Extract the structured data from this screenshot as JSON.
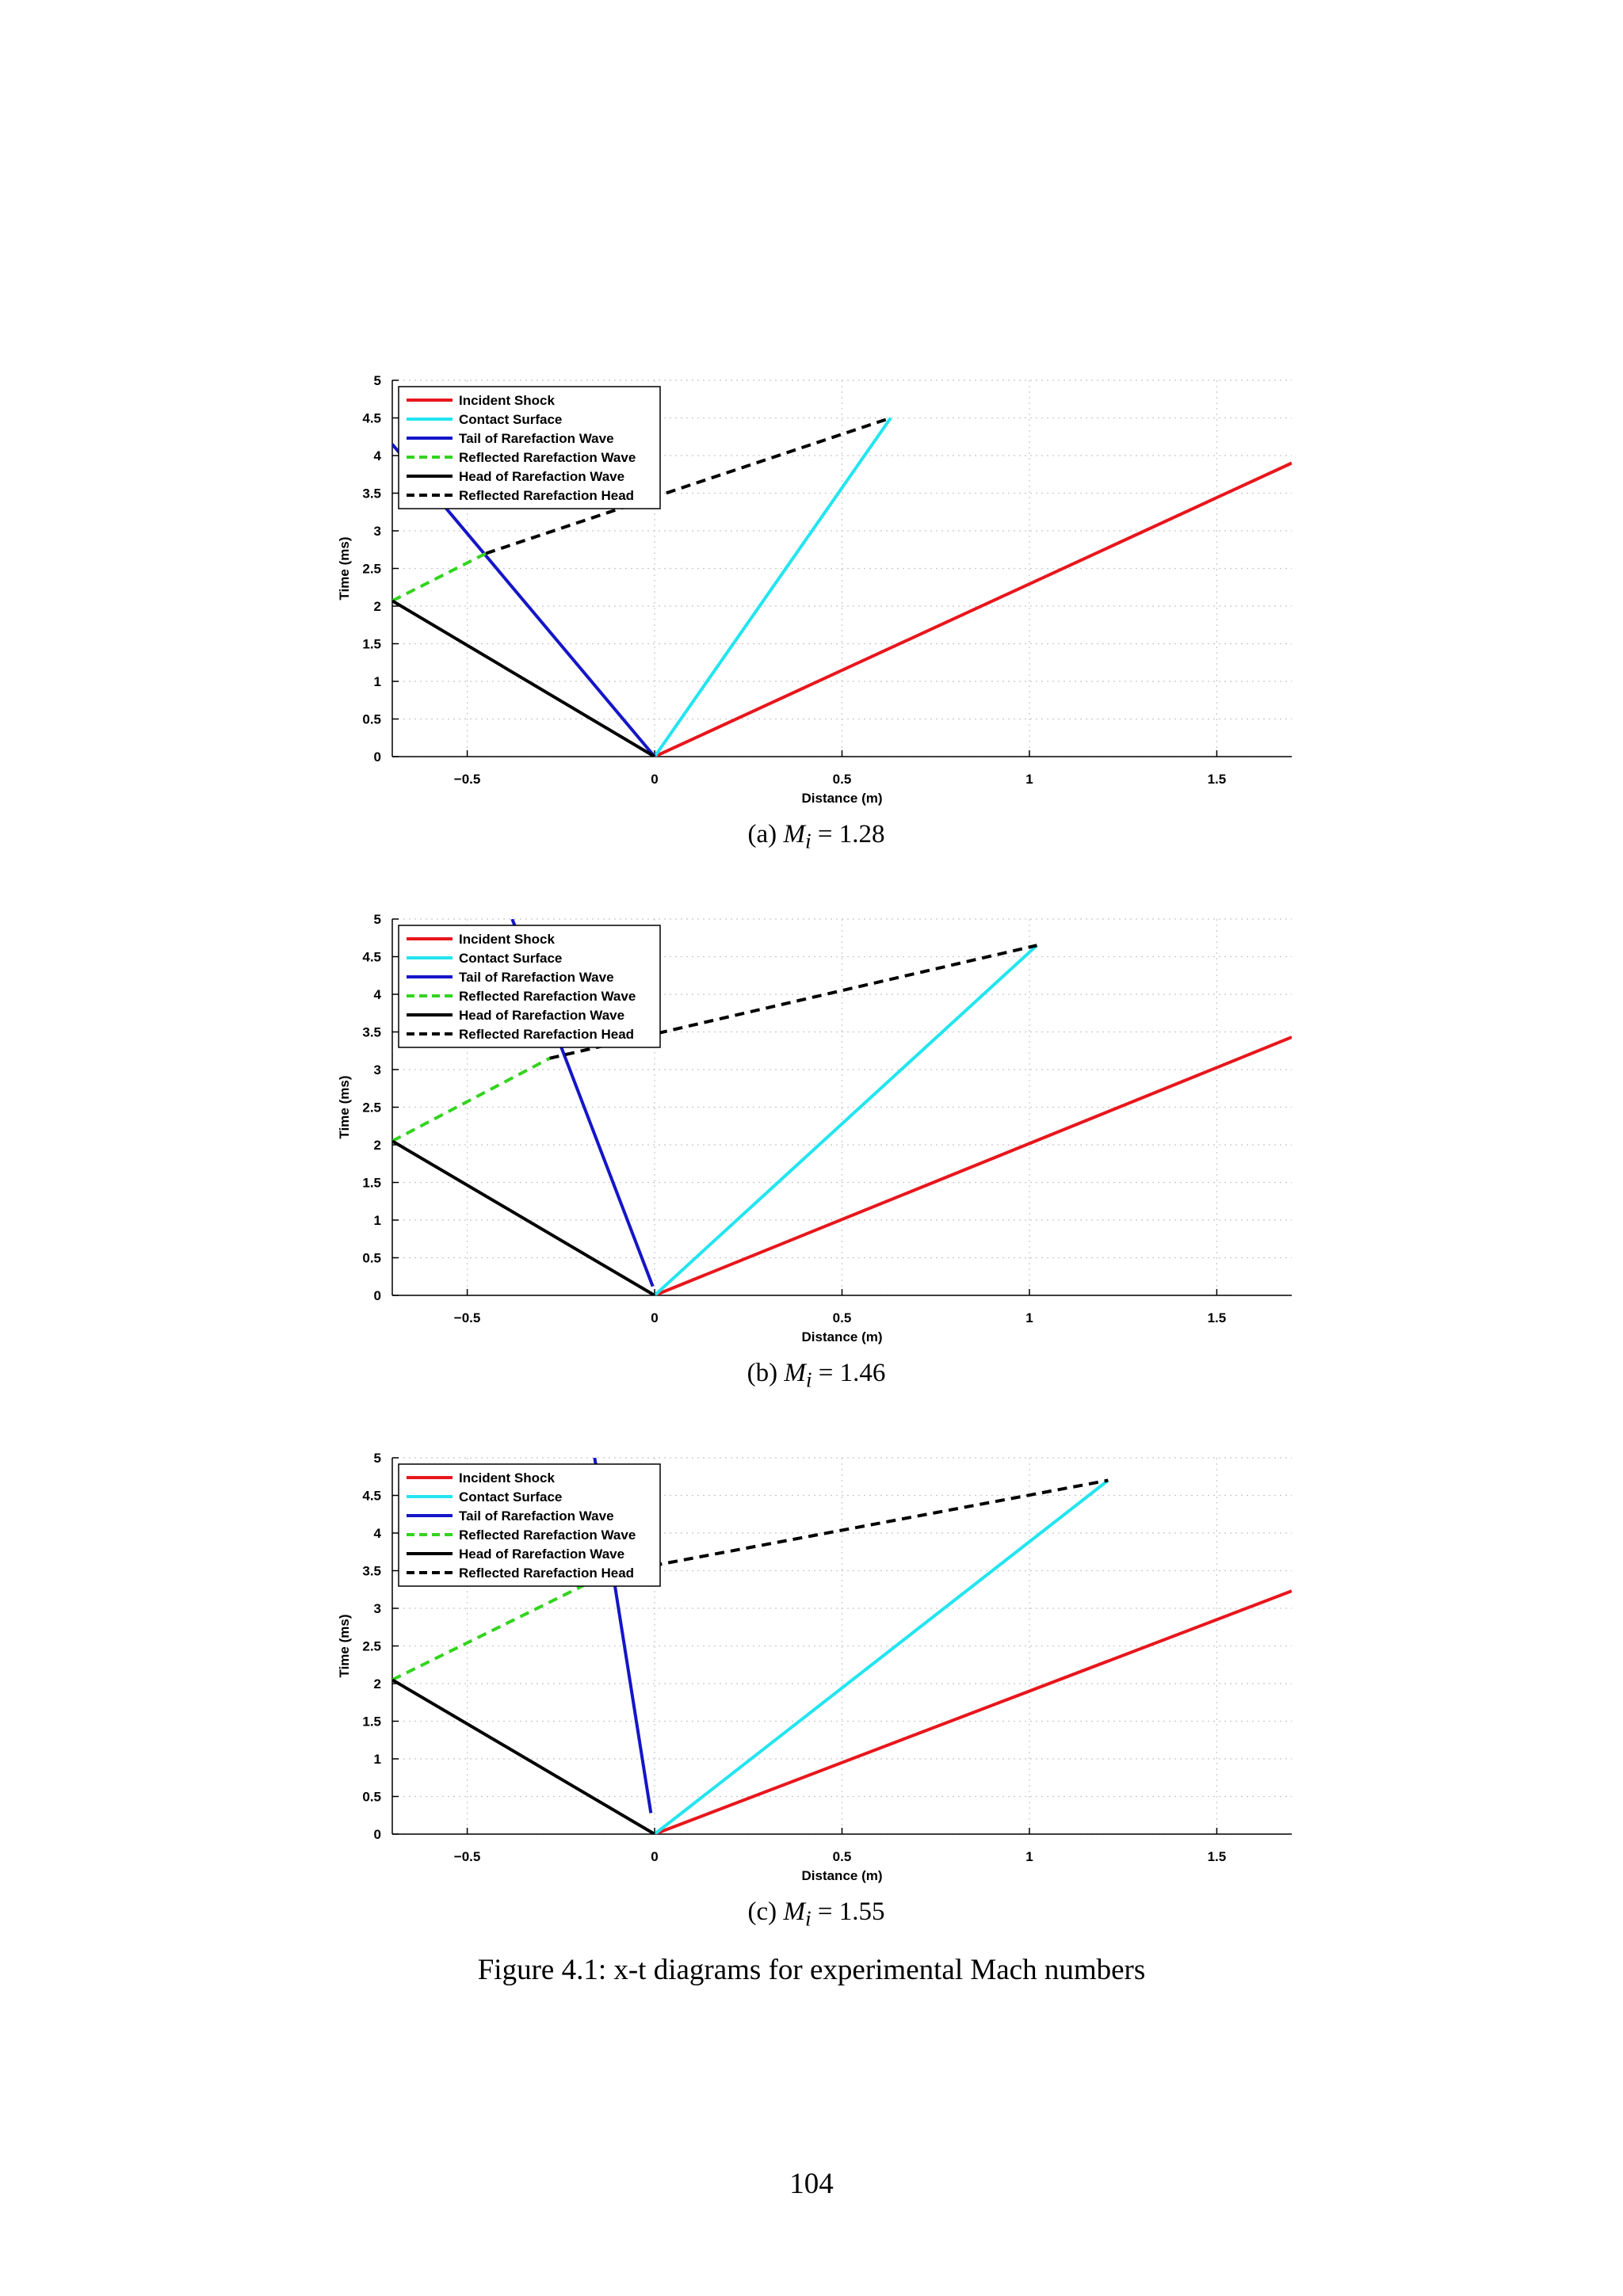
{
  "figure": {
    "caption": "Figure 4.1: x-t diagrams for experimental Mach numbers",
    "page_number": "104"
  },
  "legend_entries": [
    {
      "label": "Incident Shock",
      "color": "#e8161c",
      "dash": false
    },
    {
      "label": "Contact Surface",
      "color": "#22e5ef",
      "dash": false
    },
    {
      "label": "Tail of Rarefaction Wave",
      "color": "#1515c8",
      "dash": false
    },
    {
      "label": "Reflected Rarefaction Wave",
      "color": "#33d41f",
      "dash": true
    },
    {
      "label": "Head of Rarefaction Wave",
      "color": "#000000",
      "dash": false
    },
    {
      "label": "Reflected Rarefaction Head",
      "color": "#000000",
      "dash": true
    }
  ],
  "chart_data": [
    {
      "type": "line",
      "subcaption_prefix": "(a)",
      "subcaption_math": "M",
      "subcaption_sub": "i",
      "subcaption_value": "= 1.28",
      "xlabel": "Distance (m)",
      "ylabel": "Time (ms)",
      "xlim": [
        -0.7,
        1.7
      ],
      "ylim": [
        0,
        5
      ],
      "xticks": [
        -0.5,
        0,
        0.5,
        1,
        1.5
      ],
      "xtick_labels": [
        "−0.5",
        "0",
        "0.5",
        "1",
        "1.5"
      ],
      "yticks": [
        0,
        0.5,
        1,
        1.5,
        2,
        2.5,
        3,
        3.5,
        4,
        4.5,
        5
      ],
      "ytick_labels": [
        "0",
        "0.5",
        "1",
        "1.5",
        "2",
        "2.5",
        "3",
        "3.5",
        "4",
        "4.5",
        "5"
      ],
      "grid": true,
      "legend_position": "top-left",
      "series": [
        {
          "name": "Incident Shock",
          "x": [
            0,
            1.7
          ],
          "y": [
            0,
            3.9
          ]
        },
        {
          "name": "Contact Surface",
          "x": [
            0,
            0.63
          ],
          "y": [
            0,
            4.5
          ]
        },
        {
          "name": "Tail of Rarefaction Wave",
          "x": [
            0,
            -0.7
          ],
          "y": [
            0,
            4.15
          ]
        },
        {
          "name": "Reflected Rarefaction Wave",
          "x": [
            -0.7,
            -0.45
          ],
          "y": [
            2.07,
            2.7
          ]
        },
        {
          "name": "Head of Rarefaction Wave",
          "x": [
            0,
            -0.7
          ],
          "y": [
            0,
            2.07
          ]
        },
        {
          "name": "Reflected Rarefaction Head",
          "x": [
            -0.45,
            0.63
          ],
          "y": [
            2.7,
            4.5
          ]
        }
      ]
    },
    {
      "type": "line",
      "subcaption_prefix": "(b)",
      "subcaption_math": "M",
      "subcaption_sub": "i",
      "subcaption_value": "= 1.46",
      "xlabel": "Distance (m)",
      "ylabel": "Time (ms)",
      "xlim": [
        -0.7,
        1.7
      ],
      "ylim": [
        0,
        5
      ],
      "xticks": [
        -0.5,
        0,
        0.5,
        1,
        1.5
      ],
      "xtick_labels": [
        "−0.5",
        "0",
        "0.5",
        "1",
        "1.5"
      ],
      "yticks": [
        0,
        0.5,
        1,
        1.5,
        2,
        2.5,
        3,
        3.5,
        4,
        4.5,
        5
      ],
      "ytick_labels": [
        "0",
        "0.5",
        "1",
        "1.5",
        "2",
        "2.5",
        "3",
        "3.5",
        "4",
        "4.5",
        "5"
      ],
      "grid": true,
      "legend_position": "top-left",
      "series": [
        {
          "name": "Incident Shock",
          "x": [
            0,
            1.7
          ],
          "y": [
            0,
            3.43
          ]
        },
        {
          "name": "Contact Surface",
          "x": [
            0,
            1.02
          ],
          "y": [
            0,
            4.65
          ]
        },
        {
          "name": "Tail of Rarefaction Wave",
          "x": [
            -0.005,
            -0.38
          ],
          "y": [
            0.12,
            5.0
          ]
        },
        {
          "name": "Reflected Rarefaction Wave",
          "x": [
            -0.7,
            -0.28
          ],
          "y": [
            2.05,
            3.15
          ]
        },
        {
          "name": "Head of Rarefaction Wave",
          "x": [
            0,
            -0.7
          ],
          "y": [
            0,
            2.05
          ]
        },
        {
          "name": "Reflected Rarefaction Head",
          "x": [
            -0.28,
            1.02
          ],
          "y": [
            3.15,
            4.65
          ]
        }
      ]
    },
    {
      "type": "line",
      "subcaption_prefix": "(c)",
      "subcaption_math": "M",
      "subcaption_sub": "i",
      "subcaption_value": "= 1.55",
      "xlabel": "Distance (m)",
      "ylabel": "Time (ms)",
      "xlim": [
        -0.7,
        1.7
      ],
      "ylim": [
        0,
        5
      ],
      "xticks": [
        -0.5,
        0,
        0.5,
        1,
        1.5
      ],
      "xtick_labels": [
        "−0.5",
        "0",
        "0.5",
        "1",
        "1.5"
      ],
      "yticks": [
        0,
        0.5,
        1,
        1.5,
        2,
        2.5,
        3,
        3.5,
        4,
        4.5,
        5
      ],
      "ytick_labels": [
        "0",
        "0.5",
        "1",
        "1.5",
        "2",
        "2.5",
        "3",
        "3.5",
        "4",
        "4.5",
        "5"
      ],
      "grid": true,
      "legend_position": "top-left",
      "series": [
        {
          "name": "Incident Shock",
          "x": [
            0,
            1.7
          ],
          "y": [
            0,
            3.23
          ]
        },
        {
          "name": "Contact Surface",
          "x": [
            0,
            1.21
          ],
          "y": [
            0,
            4.7
          ]
        },
        {
          "name": "Tail of Rarefaction Wave",
          "x": [
            -0.01,
            -0.16
          ],
          "y": [
            0.28,
            5.0
          ]
        },
        {
          "name": "Reflected Rarefaction Wave",
          "x": [
            -0.7,
            -0.13
          ],
          "y": [
            2.05,
            3.45
          ]
        },
        {
          "name": "Head of Rarefaction Wave",
          "x": [
            0,
            -0.7
          ],
          "y": [
            0,
            2.05
          ]
        },
        {
          "name": "Reflected Rarefaction Head",
          "x": [
            -0.13,
            1.21
          ],
          "y": [
            3.45,
            4.7
          ]
        }
      ]
    }
  ]
}
